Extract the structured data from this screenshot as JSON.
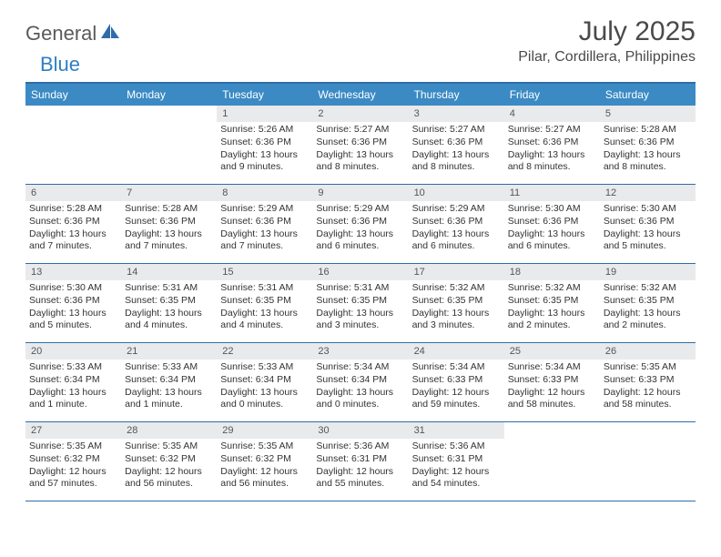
{
  "logo": {
    "general": "General",
    "blue": "Blue"
  },
  "title": "July 2025",
  "location": "Pilar, Cordillera, Philippines",
  "colors": {
    "header_bg": "#3b8ac4",
    "header_text": "#ffffff",
    "border": "#2f6da8",
    "daynum_bg": "#e9eaec",
    "daynum_text": "#555555",
    "body_text": "#333333",
    "logo_gray": "#5a5a5a",
    "logo_blue": "#2f7fc2"
  },
  "day_headers": [
    "Sunday",
    "Monday",
    "Tuesday",
    "Wednesday",
    "Thursday",
    "Friday",
    "Saturday"
  ],
  "weeks": [
    [
      {
        "n": "",
        "empty": true
      },
      {
        "n": "",
        "empty": true
      },
      {
        "n": "1",
        "sunrise": "Sunrise: 5:26 AM",
        "sunset": "Sunset: 6:36 PM",
        "daylight": "Daylight: 13 hours and 9 minutes."
      },
      {
        "n": "2",
        "sunrise": "Sunrise: 5:27 AM",
        "sunset": "Sunset: 6:36 PM",
        "daylight": "Daylight: 13 hours and 8 minutes."
      },
      {
        "n": "3",
        "sunrise": "Sunrise: 5:27 AM",
        "sunset": "Sunset: 6:36 PM",
        "daylight": "Daylight: 13 hours and 8 minutes."
      },
      {
        "n": "4",
        "sunrise": "Sunrise: 5:27 AM",
        "sunset": "Sunset: 6:36 PM",
        "daylight": "Daylight: 13 hours and 8 minutes."
      },
      {
        "n": "5",
        "sunrise": "Sunrise: 5:28 AM",
        "sunset": "Sunset: 6:36 PM",
        "daylight": "Daylight: 13 hours and 8 minutes."
      }
    ],
    [
      {
        "n": "6",
        "sunrise": "Sunrise: 5:28 AM",
        "sunset": "Sunset: 6:36 PM",
        "daylight": "Daylight: 13 hours and 7 minutes."
      },
      {
        "n": "7",
        "sunrise": "Sunrise: 5:28 AM",
        "sunset": "Sunset: 6:36 PM",
        "daylight": "Daylight: 13 hours and 7 minutes."
      },
      {
        "n": "8",
        "sunrise": "Sunrise: 5:29 AM",
        "sunset": "Sunset: 6:36 PM",
        "daylight": "Daylight: 13 hours and 7 minutes."
      },
      {
        "n": "9",
        "sunrise": "Sunrise: 5:29 AM",
        "sunset": "Sunset: 6:36 PM",
        "daylight": "Daylight: 13 hours and 6 minutes."
      },
      {
        "n": "10",
        "sunrise": "Sunrise: 5:29 AM",
        "sunset": "Sunset: 6:36 PM",
        "daylight": "Daylight: 13 hours and 6 minutes."
      },
      {
        "n": "11",
        "sunrise": "Sunrise: 5:30 AM",
        "sunset": "Sunset: 6:36 PM",
        "daylight": "Daylight: 13 hours and 6 minutes."
      },
      {
        "n": "12",
        "sunrise": "Sunrise: 5:30 AM",
        "sunset": "Sunset: 6:36 PM",
        "daylight": "Daylight: 13 hours and 5 minutes."
      }
    ],
    [
      {
        "n": "13",
        "sunrise": "Sunrise: 5:30 AM",
        "sunset": "Sunset: 6:36 PM",
        "daylight": "Daylight: 13 hours and 5 minutes."
      },
      {
        "n": "14",
        "sunrise": "Sunrise: 5:31 AM",
        "sunset": "Sunset: 6:35 PM",
        "daylight": "Daylight: 13 hours and 4 minutes."
      },
      {
        "n": "15",
        "sunrise": "Sunrise: 5:31 AM",
        "sunset": "Sunset: 6:35 PM",
        "daylight": "Daylight: 13 hours and 4 minutes."
      },
      {
        "n": "16",
        "sunrise": "Sunrise: 5:31 AM",
        "sunset": "Sunset: 6:35 PM",
        "daylight": "Daylight: 13 hours and 3 minutes."
      },
      {
        "n": "17",
        "sunrise": "Sunrise: 5:32 AM",
        "sunset": "Sunset: 6:35 PM",
        "daylight": "Daylight: 13 hours and 3 minutes."
      },
      {
        "n": "18",
        "sunrise": "Sunrise: 5:32 AM",
        "sunset": "Sunset: 6:35 PM",
        "daylight": "Daylight: 13 hours and 2 minutes."
      },
      {
        "n": "19",
        "sunrise": "Sunrise: 5:32 AM",
        "sunset": "Sunset: 6:35 PM",
        "daylight": "Daylight: 13 hours and 2 minutes."
      }
    ],
    [
      {
        "n": "20",
        "sunrise": "Sunrise: 5:33 AM",
        "sunset": "Sunset: 6:34 PM",
        "daylight": "Daylight: 13 hours and 1 minute."
      },
      {
        "n": "21",
        "sunrise": "Sunrise: 5:33 AM",
        "sunset": "Sunset: 6:34 PM",
        "daylight": "Daylight: 13 hours and 1 minute."
      },
      {
        "n": "22",
        "sunrise": "Sunrise: 5:33 AM",
        "sunset": "Sunset: 6:34 PM",
        "daylight": "Daylight: 13 hours and 0 minutes."
      },
      {
        "n": "23",
        "sunrise": "Sunrise: 5:34 AM",
        "sunset": "Sunset: 6:34 PM",
        "daylight": "Daylight: 13 hours and 0 minutes."
      },
      {
        "n": "24",
        "sunrise": "Sunrise: 5:34 AM",
        "sunset": "Sunset: 6:33 PM",
        "daylight": "Daylight: 12 hours and 59 minutes."
      },
      {
        "n": "25",
        "sunrise": "Sunrise: 5:34 AM",
        "sunset": "Sunset: 6:33 PM",
        "daylight": "Daylight: 12 hours and 58 minutes."
      },
      {
        "n": "26",
        "sunrise": "Sunrise: 5:35 AM",
        "sunset": "Sunset: 6:33 PM",
        "daylight": "Daylight: 12 hours and 58 minutes."
      }
    ],
    [
      {
        "n": "27",
        "sunrise": "Sunrise: 5:35 AM",
        "sunset": "Sunset: 6:32 PM",
        "daylight": "Daylight: 12 hours and 57 minutes."
      },
      {
        "n": "28",
        "sunrise": "Sunrise: 5:35 AM",
        "sunset": "Sunset: 6:32 PM",
        "daylight": "Daylight: 12 hours and 56 minutes."
      },
      {
        "n": "29",
        "sunrise": "Sunrise: 5:35 AM",
        "sunset": "Sunset: 6:32 PM",
        "daylight": "Daylight: 12 hours and 56 minutes."
      },
      {
        "n": "30",
        "sunrise": "Sunrise: 5:36 AM",
        "sunset": "Sunset: 6:31 PM",
        "daylight": "Daylight: 12 hours and 55 minutes."
      },
      {
        "n": "31",
        "sunrise": "Sunrise: 5:36 AM",
        "sunset": "Sunset: 6:31 PM",
        "daylight": "Daylight: 12 hours and 54 minutes."
      },
      {
        "n": "",
        "empty": true
      },
      {
        "n": "",
        "empty": true
      }
    ]
  ]
}
